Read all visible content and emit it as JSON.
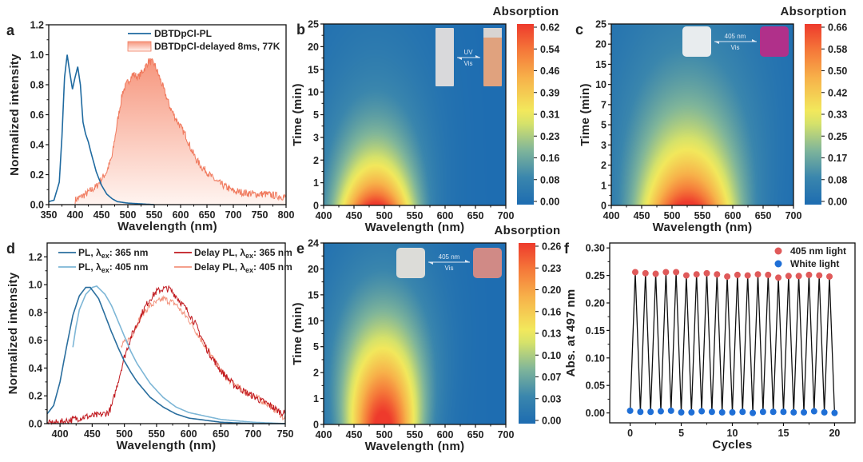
{
  "chart_data": [
    {
      "type": "line",
      "panel_label": "a",
      "xlabel": "Wavelength (nm)",
      "ylabel": "Normalized intensity",
      "xlim": [
        350,
        800
      ],
      "ylim": [
        0,
        1.2
      ],
      "xticks": [
        "350",
        "400",
        "450",
        "500",
        "550",
        "600",
        "650",
        "700",
        "750",
        "800"
      ],
      "yticks": [
        "0.0",
        "0.2",
        "0.4",
        "0.6",
        "0.8",
        "1.0",
        "1.2"
      ],
      "legend_position": "top-right",
      "series": [
        {
          "name": "DBTDpCl-PL",
          "color": "#1f6aa0",
          "x": [
            350,
            360,
            370,
            375,
            380,
            385,
            390,
            395,
            400,
            405,
            410,
            415,
            420,
            425,
            430,
            440,
            450,
            460,
            470,
            480,
            500,
            550
          ],
          "y": [
            0.02,
            0.03,
            0.15,
            0.45,
            0.85,
            1.0,
            0.88,
            0.77,
            0.85,
            0.92,
            0.8,
            0.55,
            0.47,
            0.42,
            0.35,
            0.22,
            0.13,
            0.07,
            0.04,
            0.02,
            0.01,
            0.0
          ]
        },
        {
          "name": "DBTDpCl-delayed 8ms, 77K",
          "color": "#f07a5e",
          "fill": "#f6a48e",
          "x": [
            400,
            420,
            440,
            450,
            460,
            470,
            480,
            490,
            500,
            510,
            520,
            530,
            540,
            550,
            560,
            570,
            580,
            590,
            600,
            610,
            620,
            630,
            640,
            650,
            660,
            670,
            680,
            690,
            700,
            720,
            740,
            760,
            780,
            800
          ],
          "y": [
            0.03,
            0.07,
            0.12,
            0.17,
            0.22,
            0.32,
            0.55,
            0.75,
            0.82,
            0.87,
            0.85,
            0.9,
            0.96,
            0.94,
            0.85,
            0.75,
            0.65,
            0.58,
            0.52,
            0.46,
            0.37,
            0.3,
            0.25,
            0.22,
            0.18,
            0.15,
            0.13,
            0.11,
            0.09,
            0.08,
            0.07,
            0.07,
            0.06,
            0.05
          ]
        }
      ]
    },
    {
      "type": "heatmap",
      "panel_label": "b",
      "xlabel": "Wavelength (nm)",
      "ylabel": "Time (min)",
      "colorbar_label": "Absorption",
      "xlim": [
        400,
        700
      ],
      "xticks": [
        "400",
        "450",
        "500",
        "550",
        "600",
        "650",
        "700"
      ],
      "yticks": [
        "0",
        "1",
        "2",
        "3",
        "5",
        "10",
        "15",
        "20",
        "25"
      ],
      "colorbar_ticks": [
        "0.00",
        "0.08",
        "0.16",
        "0.23",
        "0.31",
        "0.39",
        "0.46",
        "0.54",
        "0.62"
      ],
      "zlim": [
        0,
        0.62
      ],
      "peak_wavelength": 485,
      "inset": {
        "arrow_top": "UV",
        "arrow_bottom": "Vis",
        "before_color": "#d9d9db",
        "after_color": "#e0a27e"
      }
    },
    {
      "type": "heatmap",
      "panel_label": "c",
      "xlabel": "Wavelength (nm)",
      "ylabel": "Time (min)",
      "colorbar_label": "Absorption",
      "xlim": [
        400,
        700
      ],
      "xticks": [
        "400",
        "450",
        "500",
        "550",
        "600",
        "650",
        "700"
      ],
      "yticks": [
        "0",
        "1",
        "2",
        "3",
        "5",
        "7",
        "10",
        "15",
        "20",
        "25"
      ],
      "colorbar_ticks": [
        "0.00",
        "0.08",
        "0.17",
        "0.25",
        "0.33",
        "0.42",
        "0.50",
        "0.58",
        "0.66"
      ],
      "zlim": [
        0,
        0.66
      ],
      "peak_wavelength": 525,
      "inset": {
        "arrow_top": "405 nm",
        "arrow_bottom": "Vis",
        "before_color": "#e8ecee",
        "after_color": "#b0308a"
      }
    },
    {
      "type": "line",
      "panel_label": "d",
      "xlabel": "Wavelength (nm)",
      "ylabel": "Normalized intensity",
      "xlim": [
        380,
        750
      ],
      "ylim": [
        0,
        1.3
      ],
      "xticks": [
        "400",
        "450",
        "500",
        "550",
        "600",
        "650",
        "700",
        "750"
      ],
      "yticks": [
        "0.0",
        "0.2",
        "0.4",
        "0.6",
        "0.8",
        "1.0",
        "1.2"
      ],
      "legend_position": "top",
      "series": [
        {
          "label_pre": "PL, λ",
          "label_sub": "ex",
          "label_post": ": 365 nm",
          "color": "#2a6e9e",
          "x": [
            380,
            390,
            400,
            410,
            420,
            430,
            440,
            447,
            460,
            470,
            480,
            490,
            500,
            510,
            520,
            540,
            560,
            580,
            600,
            650,
            700,
            750
          ],
          "y": [
            0.07,
            0.13,
            0.3,
            0.55,
            0.78,
            0.92,
            0.98,
            0.98,
            0.9,
            0.78,
            0.66,
            0.55,
            0.45,
            0.37,
            0.3,
            0.19,
            0.12,
            0.07,
            0.04,
            0.01,
            0.0,
            0.0
          ]
        },
        {
          "label_pre": "PL, λ",
          "label_sub": "ex",
          "label_post": ": 405 nm",
          "color": "#7db6d6",
          "x": [
            420,
            425,
            430,
            440,
            450,
            457,
            470,
            480,
            490,
            500,
            510,
            520,
            540,
            560,
            580,
            600,
            650,
            700,
            750
          ],
          "y": [
            0.55,
            0.7,
            0.82,
            0.93,
            0.98,
            0.99,
            0.93,
            0.85,
            0.74,
            0.63,
            0.52,
            0.43,
            0.29,
            0.19,
            0.12,
            0.08,
            0.03,
            0.01,
            0.0
          ]
        },
        {
          "label_pre": "Delay PL, λ",
          "label_sub": "ex",
          "label_post": ": 365 nm",
          "color": "#c0181e",
          "x": [
            380,
            400,
            420,
            440,
            460,
            475,
            480,
            490,
            500,
            510,
            520,
            530,
            540,
            550,
            560,
            570,
            580,
            590,
            600,
            610,
            620,
            630,
            640,
            650,
            660,
            670,
            680,
            690,
            700,
            710,
            720,
            730,
            740,
            750
          ],
          "y": [
            0.0,
            0.01,
            0.03,
            0.05,
            0.06,
            0.08,
            0.12,
            0.3,
            0.48,
            0.62,
            0.72,
            0.82,
            0.9,
            0.95,
            0.97,
            0.97,
            0.92,
            0.86,
            0.8,
            0.72,
            0.62,
            0.52,
            0.45,
            0.38,
            0.33,
            0.28,
            0.25,
            0.22,
            0.2,
            0.17,
            0.15,
            0.12,
            0.09,
            0.07
          ]
        },
        {
          "label_pre": "Delay PL, λ",
          "label_sub": "ex",
          "label_post": ": 405 nm",
          "color": "#f2927c",
          "x": [
            495,
            500,
            510,
            520,
            530,
            540,
            550,
            560,
            570,
            580,
            590,
            600,
            620,
            640,
            660,
            680,
            700,
            720,
            740,
            750
          ],
          "y": [
            0.55,
            0.58,
            0.62,
            0.72,
            0.8,
            0.85,
            0.87,
            0.9,
            0.88,
            0.86,
            0.8,
            0.75,
            0.6,
            0.45,
            0.32,
            0.25,
            0.2,
            0.15,
            0.08,
            0.03
          ]
        }
      ]
    },
    {
      "type": "heatmap",
      "panel_label": "e",
      "xlabel": "Wavelength (nm)",
      "ylabel": "Time (min)",
      "colorbar_label": "Absorption",
      "xlim": [
        400,
        700
      ],
      "xticks": [
        "400",
        "450",
        "500",
        "550",
        "600",
        "650",
        "700"
      ],
      "yticks": [
        "0",
        "1",
        "2",
        "5",
        "10",
        "15",
        "20",
        "24"
      ],
      "colorbar_ticks": [
        "0.00",
        "0.03",
        "0.07",
        "0.10",
        "0.13",
        "0.16",
        "0.20",
        "0.23",
        "0.26"
      ],
      "zlim": [
        0,
        0.26
      ],
      "peak_wavelength": 497,
      "inset": {
        "arrow_top": "405 nm",
        "arrow_bottom": "Vis",
        "before_color": "#dcdcd8",
        "after_color": "#d08a86"
      }
    },
    {
      "type": "scatter",
      "panel_label": "f",
      "xlabel": "Cycles",
      "ylabel": "Abs. at 497 nm",
      "xlim": [
        -2,
        22
      ],
      "ylim": [
        -0.018,
        0.309
      ],
      "xticks": [
        "0",
        "5",
        "10",
        "15",
        "20"
      ],
      "yticks": [
        "0.00",
        "0.05",
        "0.10",
        "0.15",
        "0.20",
        "0.25",
        "0.30"
      ],
      "legend_position": "top-right",
      "connecting_line_color": "#111111",
      "series": [
        {
          "name": "405 nm light",
          "color": "#e05a5a",
          "x": [
            0.5,
            1.5,
            2.5,
            3.5,
            4.5,
            5.5,
            6.5,
            7.5,
            8.5,
            9.5,
            10.5,
            11.5,
            12.5,
            13.5,
            14.5,
            15.5,
            16.5,
            17.5,
            18.5,
            19.5
          ],
          "y": [
            0.256,
            0.254,
            0.253,
            0.256,
            0.256,
            0.25,
            0.252,
            0.254,
            0.252,
            0.248,
            0.251,
            0.25,
            0.252,
            0.251,
            0.246,
            0.249,
            0.249,
            0.251,
            0.25,
            0.248
          ]
        },
        {
          "name": "White light",
          "color": "#1f6fd6",
          "x": [
            0,
            1,
            2,
            3,
            4,
            5,
            6,
            7,
            8,
            9,
            10,
            11,
            12,
            13,
            14,
            15,
            16,
            17,
            18,
            19,
            20
          ],
          "y": [
            0.004,
            0.002,
            0.002,
            0.003,
            0.004,
            0.001,
            0.001,
            0.003,
            0.002,
            0.001,
            0.001,
            0.002,
            0.0,
            0.002,
            0.002,
            0.002,
            0.001,
            0.001,
            0.003,
            0.001,
            0.0
          ]
        }
      ]
    }
  ]
}
